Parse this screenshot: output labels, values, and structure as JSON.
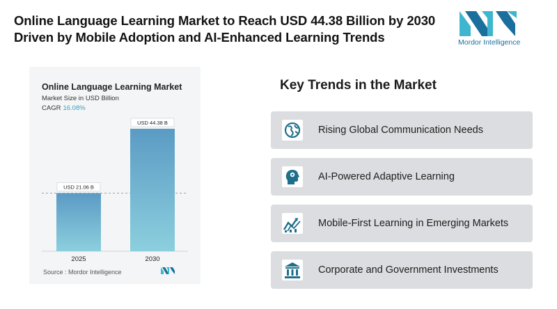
{
  "header": {
    "title_line1": "Online Language Learning Market to Reach USD 44.38 Billion by 2030",
    "title_line2": "Driven by Mobile Adoption and AI-Enhanced Learning Trends"
  },
  "brand": {
    "name": "Mordor Intelligence",
    "color": "#1b6f9c",
    "accent": "#3fb6cf"
  },
  "chart_panel": {
    "title": "Online Language Learning Market",
    "subtitle": "Market Size in USD Billion",
    "cagr_label": "CAGR",
    "cagr_value": "16.08%",
    "source": "Source : Mordor Intelligence"
  },
  "chart_data": {
    "type": "bar",
    "title": "Online Language Learning Market",
    "ylabel": "Market Size in USD Billion",
    "categories": [
      "2025",
      "2030"
    ],
    "values": [
      21.06,
      44.38
    ],
    "data_labels": [
      "USD 21.06 B",
      "USD 44.38 B"
    ],
    "ylim": [
      0,
      44.38
    ],
    "grid": false,
    "reference_line_at": 21.06,
    "bar_color_top": "#5b9bc4",
    "bar_color_bottom": "#8ccfde"
  },
  "trends": {
    "title": "Key Trends in the Market",
    "items": [
      {
        "label": "Rising Global Communication Needs",
        "icon": "globe-icon"
      },
      {
        "label": "AI-Powered Adaptive Learning",
        "icon": "ai-head-icon"
      },
      {
        "label": "Mobile-First Learning in Emerging Markets",
        "icon": "growth-arrows-icon"
      },
      {
        "label": "Corporate and Government Investments",
        "icon": "government-building-icon"
      }
    ],
    "icon_color": "#1f6f8b"
  }
}
